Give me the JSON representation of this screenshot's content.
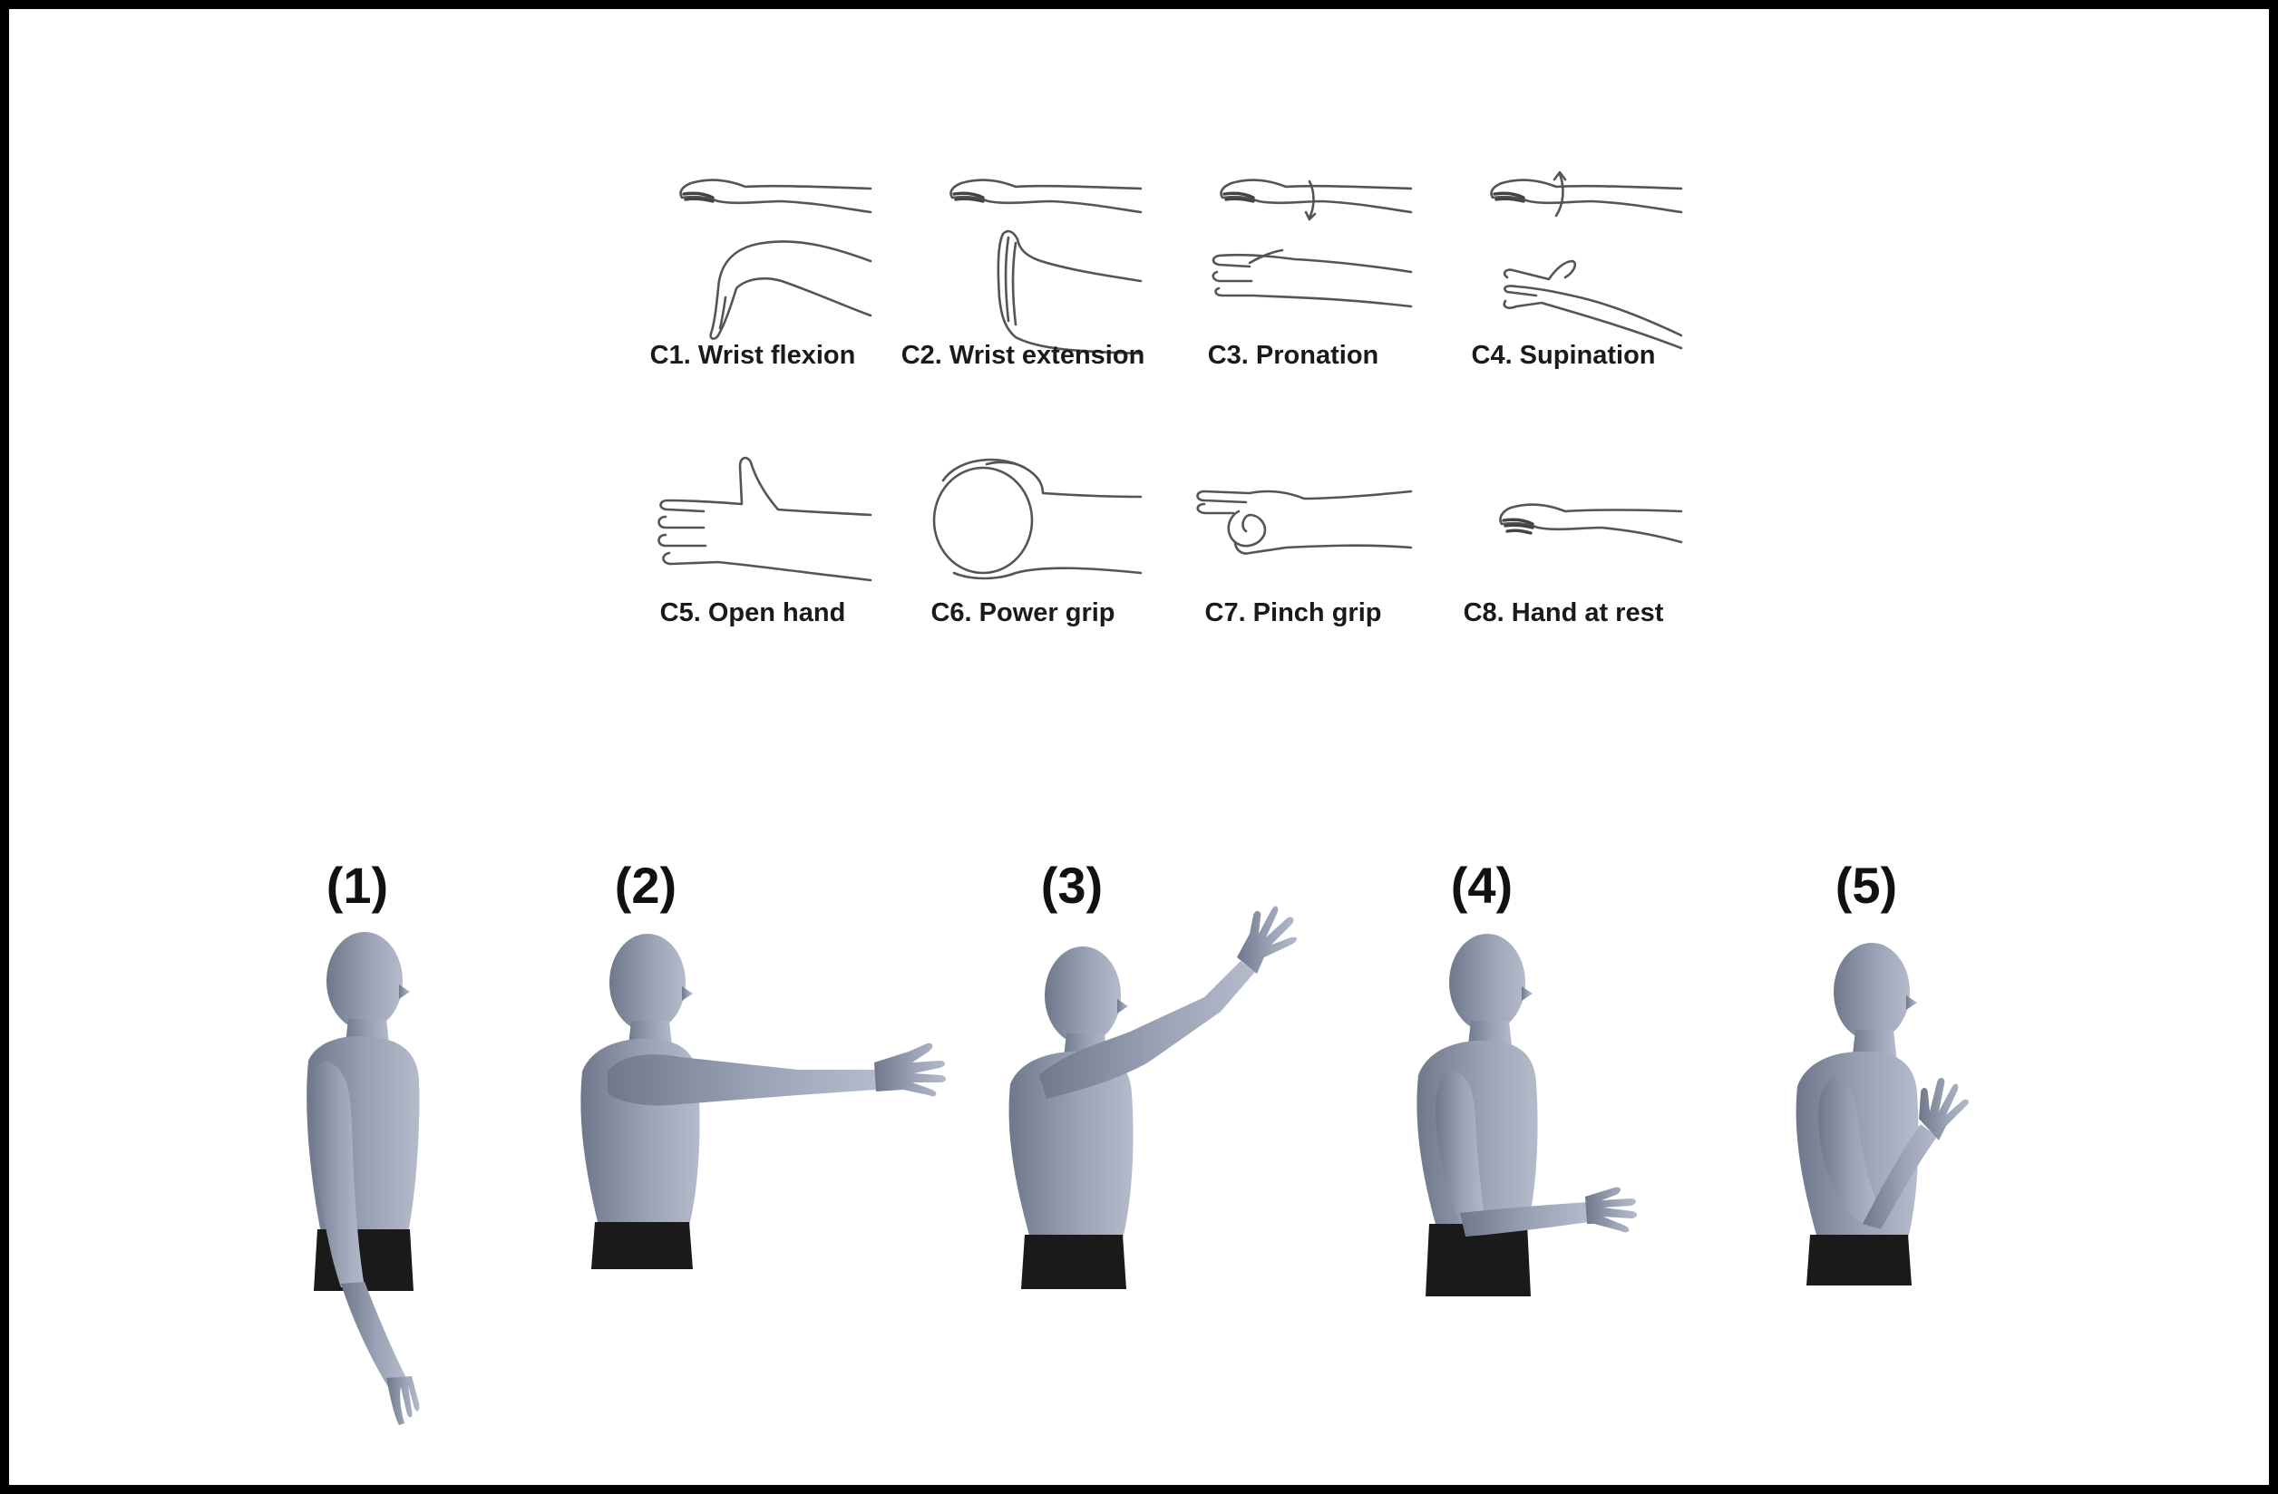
{
  "gestures": [
    {
      "code": "C1",
      "label": "C1. Wrist flexion",
      "icon": "wrist-flexion-icon"
    },
    {
      "code": "C2",
      "label": "C2. Wrist extension",
      "icon": "wrist-extension-icon"
    },
    {
      "code": "C3",
      "label": "C3. Pronation",
      "icon": "pronation-icon"
    },
    {
      "code": "C4",
      "label": "C4. Supination",
      "icon": "supination-icon"
    },
    {
      "code": "C5",
      "label": "C5. Open hand",
      "icon": "open-hand-icon"
    },
    {
      "code": "C6",
      "label": "C6. Power grip",
      "icon": "power-grip-icon"
    },
    {
      "code": "C7",
      "label": "C7. Pinch grip",
      "icon": "pinch-grip-icon"
    },
    {
      "code": "C8",
      "label": "C8. Hand at rest",
      "icon": "hand-at-rest-icon"
    }
  ],
  "poses": [
    {
      "label": "(1)",
      "description": "arm-down"
    },
    {
      "label": "(2)",
      "description": "arm-forward"
    },
    {
      "label": "(3)",
      "description": "arm-raised"
    },
    {
      "label": "(4)",
      "description": "elbow-flexed-forward"
    },
    {
      "label": "(5)",
      "description": "elbow-flexed-up"
    }
  ],
  "colors": {
    "border": "#000000",
    "background": "#ffffff",
    "skin": "#8d95a8",
    "line": "#555555"
  }
}
